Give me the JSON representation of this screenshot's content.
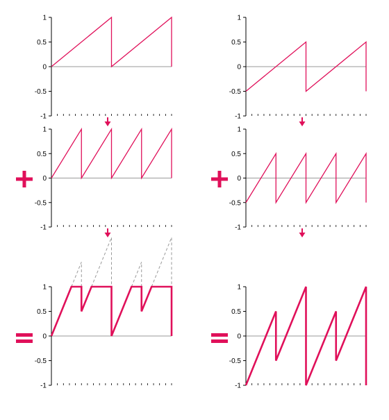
{
  "colors": {
    "accent": "#e0105a",
    "axis": "#000000",
    "guide": "#999999",
    "zero_line": "#999999"
  },
  "operators": {
    "plus": "+",
    "equals": "=",
    "arrow": "down-arrow-icon"
  },
  "chart_data": [
    {
      "id": "left-top",
      "type": "line",
      "ylim": [
        -1,
        1
      ],
      "xlim": [
        0,
        2
      ],
      "y_ticks": [
        "1",
        "0.5",
        "0",
        "-0.5",
        "-1"
      ],
      "series": [
        {
          "style": "thin",
          "x": [
            0,
            1,
            1,
            2,
            2
          ],
          "y": [
            0,
            1,
            0,
            1,
            0
          ]
        }
      ]
    },
    {
      "id": "left-middle",
      "type": "line",
      "ylim": [
        -1,
        1
      ],
      "xlim": [
        0,
        2
      ],
      "y_ticks": [
        "1",
        "0.5",
        "0",
        "-0.5",
        "-1"
      ],
      "series": [
        {
          "style": "thin",
          "x": [
            0,
            0.5,
            0.5,
            1,
            1,
            1.5,
            1.5,
            2,
            2
          ],
          "y": [
            0,
            1,
            0,
            1,
            0,
            1,
            0,
            1,
            0
          ]
        }
      ]
    },
    {
      "id": "left-bottom",
      "type": "line",
      "ylim": [
        -1,
        1
      ],
      "xlim": [
        0,
        2
      ],
      "y_ticks": [
        "1",
        "0.5",
        "0",
        "-0.5",
        "-1"
      ],
      "series": [
        {
          "style": "dashed",
          "x": [
            0.333,
            0.5,
            0.5
          ],
          "y": [
            1,
            1.5,
            1
          ]
        },
        {
          "style": "dashed",
          "x": [
            0.667,
            1,
            1
          ],
          "y": [
            1,
            2,
            1
          ]
        },
        {
          "style": "dashed",
          "x": [
            1.333,
            1.5,
            1.5
          ],
          "y": [
            1,
            1.5,
            1
          ]
        },
        {
          "style": "dashed",
          "x": [
            1.667,
            2,
            2
          ],
          "y": [
            1,
            2,
            1
          ]
        },
        {
          "style": "thick",
          "x": [
            0,
            0.333,
            0.5,
            0.5,
            0.667,
            1,
            1,
            1.333,
            1.5,
            1.5,
            1.667,
            2,
            2
          ],
          "y": [
            0,
            1,
            1,
            0.5,
            1,
            1,
            0,
            1,
            1,
            0.5,
            1,
            1,
            0
          ]
        }
      ]
    },
    {
      "id": "right-top",
      "type": "line",
      "ylim": [
        -1,
        1
      ],
      "xlim": [
        0,
        2
      ],
      "y_ticks": [
        "1",
        "0.5",
        "0",
        "-0.5",
        "-1"
      ],
      "series": [
        {
          "style": "thin",
          "x": [
            0,
            1,
            1,
            2,
            2
          ],
          "y": [
            -0.5,
            0.5,
            -0.5,
            0.5,
            -0.5
          ]
        }
      ]
    },
    {
      "id": "right-middle",
      "type": "line",
      "ylim": [
        -1,
        1
      ],
      "xlim": [
        0,
        2
      ],
      "y_ticks": [
        "1",
        "0.5",
        "0",
        "-0.5",
        "-1"
      ],
      "series": [
        {
          "style": "thin",
          "x": [
            0,
            0.5,
            0.5,
            1,
            1,
            1.5,
            1.5,
            2,
            2
          ],
          "y": [
            -0.5,
            0.5,
            -0.5,
            0.5,
            -0.5,
            0.5,
            -0.5,
            0.5,
            -0.5
          ]
        }
      ]
    },
    {
      "id": "right-bottom",
      "type": "line",
      "ylim": [
        -1,
        1
      ],
      "xlim": [
        0,
        2
      ],
      "y_ticks": [
        "1",
        "0.5",
        "0",
        "-0.5",
        "-1"
      ],
      "series": [
        {
          "style": "thick",
          "x": [
            0,
            0.5,
            0.5,
            1,
            1,
            1.5,
            1.5,
            2,
            2
          ],
          "y": [
            -1,
            0.5,
            -0.5,
            1,
            -1,
            0.5,
            -0.5,
            1,
            -1
          ]
        }
      ]
    }
  ]
}
